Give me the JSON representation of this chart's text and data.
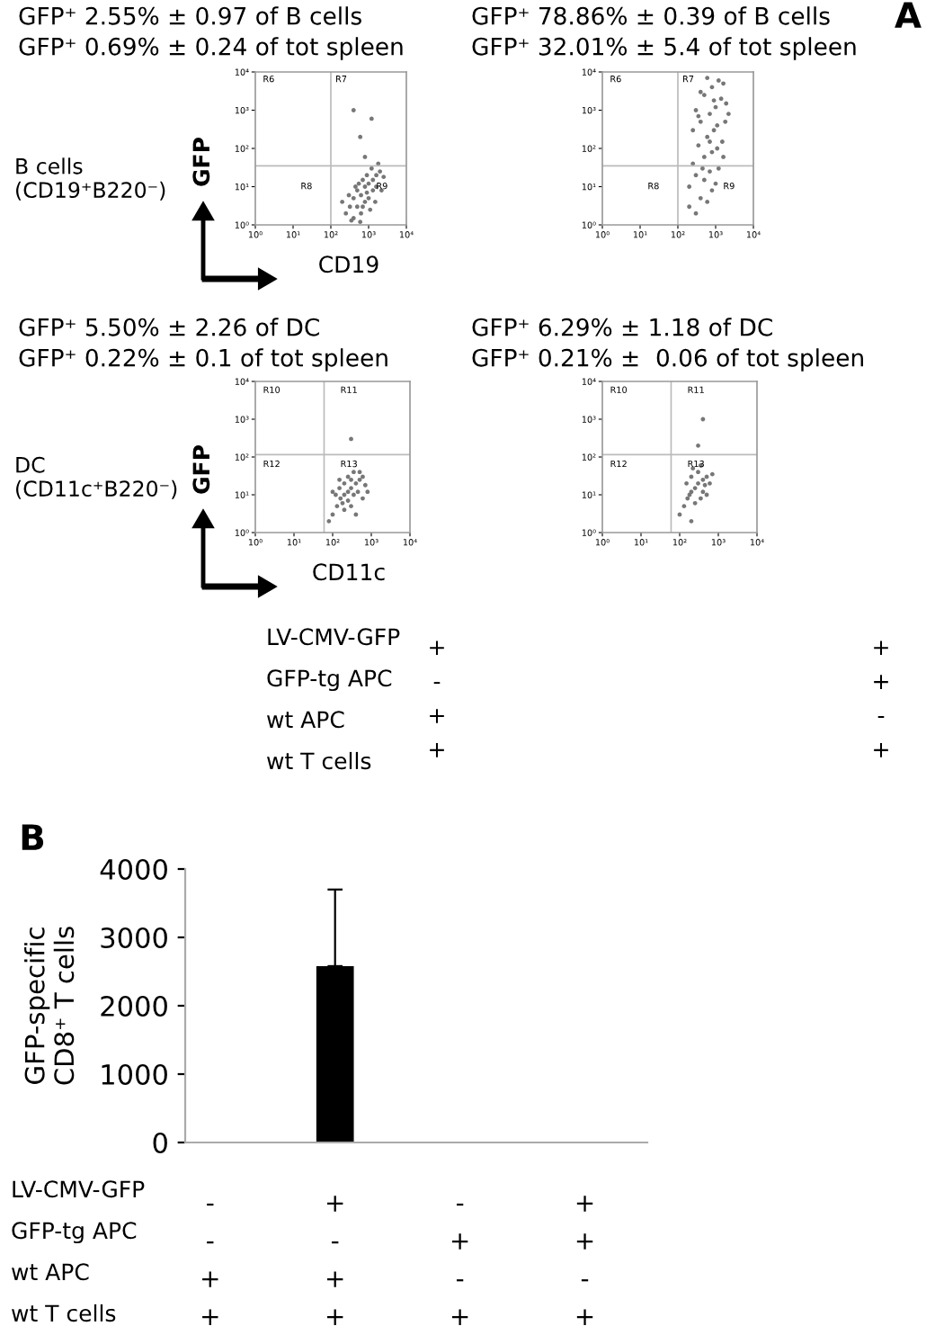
{
  "chart_data": [
    {
      "type": "scatter",
      "title": "GFP⁺ 2.55% ± 0.97 of B cells",
      "subtitle": "GFP⁺ 0.69% ± 0.24 of tot spleen",
      "xlabel": "CD19",
      "ylabel": "GFP",
      "marker": "circle",
      "grid": false,
      "log": "xy",
      "xlim": [
        1,
        10000
      ],
      "ylim": [
        1,
        10000
      ],
      "xticks": [
        {
          "value": 1,
          "label": "10⁰"
        },
        {
          "value": 10,
          "label": "10¹"
        },
        {
          "value": 100,
          "label": "10²"
        },
        {
          "value": 1000,
          "label": "10³"
        },
        {
          "value": 10000,
          "label": "10⁴"
        }
      ],
      "yticks": [
        {
          "value": 1,
          "label": "10⁰"
        },
        {
          "value": 10,
          "label": "10¹"
        },
        {
          "value": 100,
          "label": "10²"
        },
        {
          "value": 1000,
          "label": "10³"
        },
        {
          "value": 10000,
          "label": "10⁴"
        }
      ],
      "ref_lines": [
        {
          "axis": "x",
          "value": 100,
          "color": "#bbbbbb"
        },
        {
          "axis": "y",
          "value": 35,
          "color": "#bbbbbb"
        }
      ],
      "annotations": [
        "A",
        "B cells\n(CD19⁺B220⁻)",
        "R6",
        "R7",
        "R8",
        "R9"
      ],
      "series": [
        {
          "color": "#777777",
          "x": [
            250,
            320,
            400,
            500,
            630,
            800,
            1000,
            1300,
            1600,
            2000,
            400,
            500,
            630,
            800,
            1000,
            1300,
            1600,
            300,
            450,
            700,
            900,
            1200,
            2500,
            350,
            600,
            1100,
            2200,
            700,
            550,
            1500,
            200,
            900,
            1800,
            600,
            1200,
            400,
            800
          ],
          "values": [
            2,
            3,
            5,
            8,
            6,
            10,
            12,
            15,
            20,
            25,
            1.5,
            3,
            2,
            4,
            5,
            8,
            10,
            6,
            10,
            15,
            20,
            30,
            18,
            1.3,
            1.2,
            2.5,
            8,
            3,
            12,
            4,
            4,
            7,
            40,
            200,
            600,
            1000,
            60
          ]
        }
      ]
    },
    {
      "type": "scatter",
      "title": "GFP⁺ 78.86% ± 0.39 of B cells",
      "subtitle": "GFP⁺ 32.01% ± 5.4 of tot spleen",
      "marker": "circle",
      "grid": false,
      "log": "xy",
      "xlim": [
        1,
        10000
      ],
      "ylim": [
        1,
        10000
      ],
      "xticks": [
        {
          "value": 1,
          "label": "10⁰"
        },
        {
          "value": 10,
          "label": "10¹"
        },
        {
          "value": 100,
          "label": "10²"
        },
        {
          "value": 1000,
          "label": "10³"
        },
        {
          "value": 10000,
          "label": "10⁴"
        }
      ],
      "yticks": [
        {
          "value": 1,
          "label": "10⁰"
        },
        {
          "value": 10,
          "label": "10¹"
        },
        {
          "value": 100,
          "label": "10²"
        },
        {
          "value": 1000,
          "label": "10³"
        },
        {
          "value": 10000,
          "label": "10⁴"
        }
      ],
      "ref_lines": [
        {
          "axis": "x",
          "value": 100,
          "color": "#bbbbbb"
        },
        {
          "axis": "y",
          "value": 35,
          "color": "#bbbbbb"
        }
      ],
      "annotations": [
        "R6",
        "R7",
        "R8",
        "R9"
      ],
      "series": [
        {
          "color": "#777777",
          "x": [
            200,
            300,
            400,
            600,
            800,
            1000,
            500,
            300,
            700,
            1200,
            250,
            500,
            800,
            1100,
            1500,
            350,
            600,
            900,
            1800,
            250,
            400,
            700,
            1000,
            1400,
            1900,
            300,
            500,
            800,
            1200,
            600,
            1600,
            400,
            900,
            2200,
            350,
            1100,
            700,
            450,
            1600,
            200
          ],
          "values": [
            3,
            2,
            5,
            4,
            8,
            12,
            15,
            20,
            25,
            30,
            40,
            60,
            80,
            100,
            150,
            120,
            200,
            300,
            500,
            300,
            500,
            800,
            1200,
            2000,
            1500,
            1000,
            2500,
            4000,
            6000,
            7000,
            5000,
            3000,
            1800,
            800,
            700,
            400,
            150,
            30,
            60,
            10
          ]
        }
      ]
    },
    {
      "type": "scatter",
      "title": "GFP⁺ 5.50% ± 2.26 of DC",
      "subtitle": "GFP⁺ 0.22% ± 0.1 of tot spleen",
      "xlabel": "CD11c",
      "ylabel": "GFP",
      "marker": "circle",
      "grid": false,
      "log": "xy",
      "xlim": [
        1,
        10000
      ],
      "ylim": [
        1,
        10000
      ],
      "xticks": [
        {
          "value": 1,
          "label": "10⁰"
        },
        {
          "value": 10,
          "label": "10¹"
        },
        {
          "value": 100,
          "label": "10²"
        },
        {
          "value": 1000,
          "label": "10³"
        },
        {
          "value": 10000,
          "label": "10⁴"
        }
      ],
      "yticks": [
        {
          "value": 1,
          "label": "10⁰"
        },
        {
          "value": 10,
          "label": "10¹"
        },
        {
          "value": 100,
          "label": "10²"
        },
        {
          "value": 1000,
          "label": "10³"
        },
        {
          "value": 10000,
          "label": "10⁴"
        }
      ],
      "ref_lines": [
        {
          "axis": "x",
          "value": 60,
          "color": "#bbbbbb"
        },
        {
          "axis": "y",
          "value": 115,
          "color": "#bbbbbb"
        }
      ],
      "annotations": [
        "DC\n(CD11c⁺B220⁻)",
        "LV-CMV-GFP",
        "GFP-tg APC",
        "wt APC",
        "wt T cells",
        "+\n-\n+\n+",
        "R10",
        "R11",
        "R12",
        "R13"
      ],
      "series": [
        {
          "color": "#777777",
          "x": [
            80,
            100,
            130,
            160,
            200,
            250,
            300,
            400,
            500,
            700,
            120,
            150,
            200,
            250,
            350,
            450,
            600,
            300,
            200,
            400,
            150,
            300,
            500,
            800,
            250,
            350,
            100,
            180,
            600,
            300
          ],
          "values": [
            2,
            3,
            5,
            8,
            10,
            12,
            15,
            20,
            25,
            18,
            10,
            15,
            20,
            30,
            40,
            12,
            8,
            5,
            4,
            3,
            25,
            25,
            40,
            12,
            7,
            10,
            12,
            6,
            30,
            300
          ]
        }
      ]
    },
    {
      "type": "scatter",
      "title": "GFP⁺ 6.29% ± 1.18 of DC",
      "subtitle": "GFP⁺ 0.21% ±  0.06 of tot spleen",
      "marker": "circle",
      "grid": false,
      "log": "xy",
      "xlim": [
        1,
        10000
      ],
      "ylim": [
        1,
        10000
      ],
      "xticks": [
        {
          "value": 1,
          "label": "10⁰"
        },
        {
          "value": 10,
          "label": "10¹"
        },
        {
          "value": 100,
          "label": "10²"
        },
        {
          "value": 1000,
          "label": "10³"
        },
        {
          "value": 10000,
          "label": "10⁴"
        }
      ],
      "yticks": [
        {
          "value": 1,
          "label": "10⁰"
        },
        {
          "value": 10,
          "label": "10¹"
        },
        {
          "value": 100,
          "label": "10²"
        },
        {
          "value": 1000,
          "label": "10³"
        },
        {
          "value": 10000,
          "label": "10⁴"
        }
      ],
      "ref_lines": [
        {
          "axis": "x",
          "value": 60,
          "color": "#bbbbbb"
        },
        {
          "axis": "y",
          "value": 115,
          "color": "#bbbbbb"
        }
      ],
      "annotations": [
        "+\n+\n-\n+",
        "R10",
        "R11",
        "R12",
        "R13"
      ],
      "series": [
        {
          "color": "#777777",
          "x": [
            100,
            130,
            160,
            200,
            250,
            300,
            400,
            500,
            150,
            200,
            300,
            400,
            500,
            250,
            350,
            600,
            180,
            220,
            350,
            700,
            300,
            400,
            200,
            450
          ],
          "values": [
            3,
            5,
            8,
            12,
            15,
            20,
            25,
            30,
            20,
            30,
            40,
            12,
            10,
            6,
            8,
            20,
            10,
            50,
            60,
            35,
            200,
            1000,
            2,
            18
          ]
        }
      ]
    },
    {
      "type": "bar",
      "ylabel": "GFP-specific\nCD8⁺ T cells",
      "grid": false,
      "categories": [
        "-\n-\n+\n+",
        "+\n-\n+\n+",
        "-\n+\n-\n+",
        "+\n+\n-\n+"
      ],
      "values": [
        0,
        2580,
        0,
        0
      ],
      "errors": [
        null,
        [
          2580,
          3700
        ],
        null,
        null
      ],
      "color": "#000000",
      "ylim": [
        0,
        4000
      ],
      "yticks": [
        0,
        1000,
        2000,
        3000,
        4000
      ],
      "annotations": [
        "B",
        "LV-CMV-GFP",
        "GFP-tg APC",
        "wt APC",
        "wt T cells"
      ]
    }
  ]
}
